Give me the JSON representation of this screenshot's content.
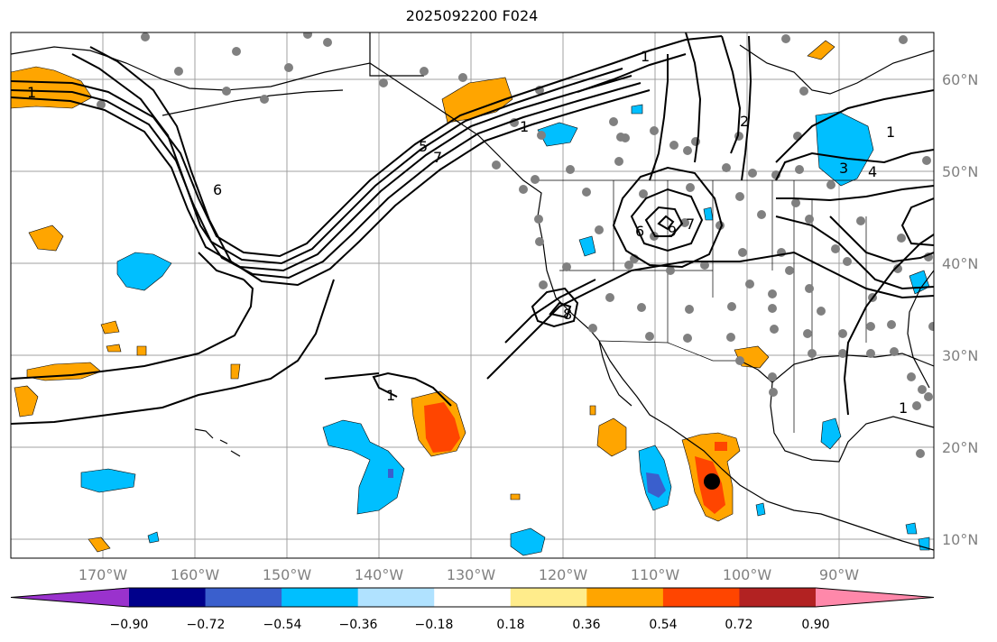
{
  "title": "2025092200 F024",
  "lat_labels": [
    "60°N",
    "50°N",
    "40°N",
    "30°N",
    "20°N",
    "10°N"
  ],
  "lon_labels": [
    "170°W",
    "160°W",
    "150°W",
    "140°W",
    "130°W",
    "120°W",
    "110°W",
    "100°W",
    "90°W"
  ],
  "colorbar": {
    "ticks": [
      "−0.90",
      "−0.72",
      "−0.54",
      "−0.36",
      "−0.18",
      "0.18",
      "0.36",
      "0.54",
      "0.72",
      "0.90"
    ],
    "colors": [
      "#9a32cd",
      "#00008b",
      "#3a5fcd",
      "#00bfff",
      "#b0e2ff",
      "#ffffff",
      "#ffec8b",
      "#ffa500",
      "#ff4500",
      "#b22222",
      "#ff88aa"
    ]
  },
  "contour_labels": [
    "1",
    "1",
    "6",
    "5",
    "7",
    "1",
    "1",
    "3",
    "4",
    "2",
    "1",
    "6",
    "9",
    "7",
    "8",
    "1"
  ],
  "marker": "event-location"
}
